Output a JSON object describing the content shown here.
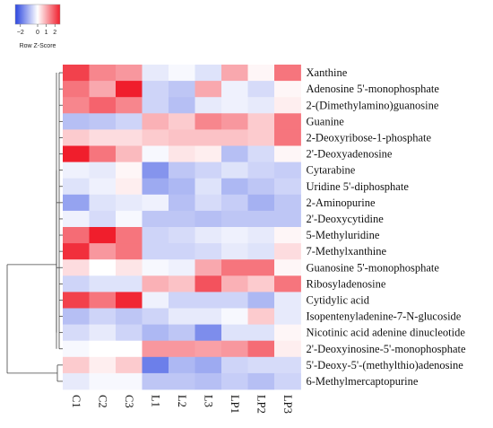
{
  "chart_data": {
    "type": "heatmap",
    "title": "",
    "xlabel": "",
    "ylabel": "",
    "colorbar": {
      "label": "Row Z-Score",
      "ticks": [
        "−2",
        "0",
        "1",
        "2"
      ],
      "tick_values": [
        -2,
        0,
        1,
        2
      ],
      "range": [
        -2.6,
        2.6
      ],
      "colors": {
        "low": "#2b46e0",
        "mid": "#ffffff",
        "high": "#f01e2c"
      }
    },
    "columns": [
      "C1",
      "C2",
      "C3",
      "L1",
      "L2",
      "L3",
      "LP1",
      "LP2",
      "LP3"
    ],
    "rows": [
      "Xanthine",
      "Adenosine 5'-monophosphate",
      "2-(Dimethylamino)guanosine",
      "Guanine",
      "2-Deoxyribose-1-phosphate",
      "2'-Deoxyadenosine",
      "Cytarabine",
      "Uridine 5'-diphosphate",
      "2-Aminopurine",
      "2'-Deoxycytidine",
      "5-Methyluridine",
      "7-Methylxanthine",
      "Guanosine 5'-monophosphate",
      "Ribosyladenosine",
      "Cytidylic acid",
      "Isopentenyladenine-7-N-glucoside",
      "Nicotinic acid adenine dinucleotide",
      "2'-Deoxyinosine-5'-monophosphate",
      "5'-Deoxy-5'-(methylthio)adenosine",
      "6-Methylmercaptopurine"
    ],
    "values": [
      [
        2.2,
        1.4,
        1.2,
        -0.3,
        -0.1,
        -0.4,
        1.0,
        0.1,
        1.6
      ],
      [
        1.6,
        1.0,
        2.6,
        -0.6,
        -0.8,
        1.0,
        -0.2,
        -0.5,
        0.1
      ],
      [
        1.4,
        1.8,
        1.4,
        -0.6,
        -0.9,
        -0.3,
        -0.2,
        -0.3,
        0.2
      ],
      [
        -0.9,
        -0.8,
        -0.6,
        0.9,
        0.6,
        1.4,
        1.2,
        0.6,
        1.6
      ],
      [
        0.6,
        0.4,
        0.4,
        0.6,
        0.7,
        0.7,
        0.7,
        0.6,
        1.6
      ],
      [
        2.6,
        1.6,
        0.8,
        -0.1,
        0.3,
        0.2,
        -0.9,
        -0.5,
        0.1
      ],
      [
        -0.2,
        -0.3,
        0.1,
        -1.5,
        -0.8,
        -0.6,
        -0.4,
        -0.6,
        -0.7
      ],
      [
        -0.4,
        -0.2,
        0.2,
        -1.2,
        -1.0,
        -0.4,
        -1.0,
        -0.8,
        -0.6
      ],
      [
        -1.3,
        -0.4,
        -0.3,
        -0.2,
        -0.9,
        -0.5,
        -0.7,
        -1.1,
        -0.8
      ],
      [
        -0.2,
        -0.5,
        -0.1,
        -0.8,
        -0.8,
        -0.9,
        -0.8,
        -0.8,
        -0.8
      ],
      [
        1.7,
        2.6,
        1.6,
        -0.6,
        -0.5,
        -0.3,
        -0.2,
        -0.3,
        0.1
      ],
      [
        2.4,
        1.2,
        1.6,
        -0.6,
        -0.6,
        -0.5,
        -0.3,
        -0.4,
        0.4
      ],
      [
        0.4,
        0.0,
        0.3,
        -0.1,
        -0.2,
        1.0,
        1.6,
        1.6,
        0.1
      ],
      [
        -0.6,
        -0.4,
        -0.4,
        0.9,
        0.7,
        2.0,
        0.9,
        0.6,
        1.6
      ],
      [
        2.2,
        1.6,
        2.5,
        -0.2,
        -0.6,
        -0.6,
        -0.6,
        -1.0,
        -0.3
      ],
      [
        -0.9,
        -0.6,
        -0.8,
        -0.6,
        -0.3,
        -0.3,
        -0.1,
        0.6,
        -0.3
      ],
      [
        -0.5,
        -0.3,
        -0.6,
        -1.0,
        -0.8,
        -1.6,
        -0.4,
        -0.4,
        0.1
      ],
      [
        -0.1,
        0.0,
        0.0,
        1.2,
        1.2,
        1.1,
        1.2,
        1.7,
        0.2
      ],
      [
        0.6,
        0.2,
        0.6,
        -1.8,
        -1.0,
        -1.2,
        -0.6,
        -0.5,
        -0.5
      ],
      [
        -0.3,
        -0.1,
        -0.1,
        -0.8,
        -0.8,
        -0.9,
        -0.7,
        -0.9,
        -0.6
      ]
    ]
  }
}
